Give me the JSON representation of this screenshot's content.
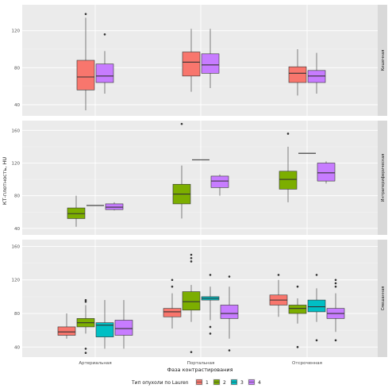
{
  "chart_data": {
    "type": "boxplot",
    "xlabel": "Фаза контрастирования",
    "ylabel": "КТ-плотность, HU",
    "categories": [
      "Артериальная",
      "Портальная",
      "Отсроченная"
    ],
    "legend": {
      "title": "Тип опухоли по Lauren",
      "position": "bottom",
      "items": [
        {
          "label": "1",
          "color": "#f8766d"
        },
        {
          "label": "2",
          "color": "#7cae00"
        },
        {
          "label": "3",
          "color": "#00bfc4"
        },
        {
          "label": "4",
          "color": "#c77cff"
        }
      ]
    },
    "grid": true,
    "panels": [
      {
        "strip": "Кишечная",
        "ylim": [
          28,
          148
        ],
        "yticks": [
          40,
          80,
          120
        ],
        "boxes": [
          {
            "category": "Артериальная",
            "group": "1",
            "min": 34,
            "q1": 56,
            "median": 70,
            "q3": 88,
            "max": 134,
            "outliers": [
              138
            ]
          },
          {
            "category": "Артериальная",
            "group": "4",
            "min": 52,
            "q1": 64,
            "median": 71,
            "q3": 84,
            "max": 98,
            "outliers": [
              116
            ]
          },
          {
            "category": "Портальная",
            "group": "1",
            "min": 54,
            "q1": 71,
            "median": 86,
            "q3": 97,
            "max": 122,
            "outliers": []
          },
          {
            "category": "Портальная",
            "group": "4",
            "min": 58,
            "q1": 74,
            "median": 83,
            "q3": 95,
            "max": 122,
            "outliers": []
          },
          {
            "category": "Отсроченная",
            "group": "1",
            "min": 50,
            "q1": 64,
            "median": 74,
            "q3": 81,
            "max": 100,
            "outliers": []
          },
          {
            "category": "Отсроченная",
            "group": "4",
            "min": 52,
            "q1": 64,
            "median": 71,
            "q3": 77,
            "max": 96,
            "outliers": []
          }
        ]
      },
      {
        "strip": "Интрапериферическая",
        "ylim": [
          32,
          172
        ],
        "yticks": [
          40,
          80,
          120,
          160
        ],
        "boxes": [
          {
            "category": "Артериальная",
            "group": "2",
            "min": 42,
            "q1": 52,
            "median": 58,
            "q3": 65,
            "max": 80,
            "outliers": []
          },
          {
            "category": "Артериальная",
            "group": "3",
            "min": 68,
            "q1": 68,
            "median": 68,
            "q3": 68,
            "max": 68,
            "outliers": []
          },
          {
            "category": "Артериальная",
            "group": "4",
            "min": 62,
            "q1": 63,
            "median": 66,
            "q3": 70,
            "max": 72,
            "outliers": []
          },
          {
            "category": "Портальная",
            "group": "2",
            "min": 52,
            "q1": 70,
            "median": 82,
            "q3": 94,
            "max": 117,
            "outliers": [
              168
            ]
          },
          {
            "category": "Портальная",
            "group": "3",
            "min": 124,
            "q1": 124,
            "median": 124,
            "q3": 124,
            "max": 124,
            "outliers": []
          },
          {
            "category": "Портальная",
            "group": "4",
            "min": 80,
            "q1": 90,
            "median": 98,
            "q3": 104,
            "max": 106,
            "outliers": []
          },
          {
            "category": "Отсроченная",
            "group": "2",
            "min": 72,
            "q1": 88,
            "median": 100,
            "q3": 110,
            "max": 140,
            "outliers": [
              156
            ]
          },
          {
            "category": "Отсроченная",
            "group": "3",
            "min": 132,
            "q1": 132,
            "median": 132,
            "q3": 132,
            "max": 132,
            "outliers": []
          },
          {
            "category": "Отсроченная",
            "group": "4",
            "min": 95,
            "q1": 98,
            "median": 108,
            "q3": 120,
            "max": 122,
            "outliers": []
          }
        ]
      },
      {
        "strip": "Смешанная",
        "ylim": [
          28,
          168
        ],
        "yticks": [
          40,
          80,
          120,
          160
        ],
        "boxes": [
          {
            "category": "Артериальная",
            "group": "1",
            "min": 50,
            "q1": 54,
            "median": 58,
            "q3": 64,
            "max": 80,
            "outliers": []
          },
          {
            "category": "Артериальная",
            "group": "2",
            "min": 56,
            "q1": 64,
            "median": 69,
            "q3": 74,
            "max": 90,
            "outliers": [
              94,
              96,
              38,
              33
            ]
          },
          {
            "category": "Артериальная",
            "group": "3",
            "min": 38,
            "q1": 52,
            "median": 66,
            "q3": 69,
            "max": 96,
            "outliers": []
          },
          {
            "category": "Артериальная",
            "group": "4",
            "min": 38,
            "q1": 54,
            "median": 62,
            "q3": 72,
            "max": 96,
            "outliers": []
          },
          {
            "category": "Портальная",
            "group": "1",
            "min": 62,
            "q1": 76,
            "median": 82,
            "q3": 86,
            "max": 104,
            "outliers": [
              120,
              112
            ]
          },
          {
            "category": "Портальная",
            "group": "2",
            "min": 70,
            "q1": 84,
            "median": 94,
            "q3": 106,
            "max": 114,
            "outliers": [
              150,
              146,
              142,
              34
            ]
          },
          {
            "category": "Портальная",
            "group": "3",
            "min": 72,
            "q1": 96,
            "median": 98,
            "q3": 100,
            "max": 112,
            "outliers": [
              126,
              64,
              56
            ]
          },
          {
            "category": "Портальная",
            "group": "4",
            "min": 50,
            "q1": 74,
            "median": 80,
            "q3": 90,
            "max": 112,
            "outliers": [
              124,
              36
            ]
          },
          {
            "category": "Отсроченная",
            "group": "1",
            "min": 76,
            "q1": 90,
            "median": 96,
            "q3": 102,
            "max": 120,
            "outliers": [
              126
            ]
          },
          {
            "category": "Отсроченная",
            "group": "2",
            "min": 68,
            "q1": 80,
            "median": 86,
            "q3": 90,
            "max": 98,
            "outliers": [
              112,
              40
            ]
          },
          {
            "category": "Отсроченная",
            "group": "3",
            "min": 70,
            "q1": 82,
            "median": 88,
            "q3": 96,
            "max": 110,
            "outliers": [
              126,
              48
            ]
          },
          {
            "category": "Отсроченная",
            "group": "4",
            "min": 58,
            "q1": 74,
            "median": 80,
            "q3": 86,
            "max": 104,
            "outliers": [
              120,
              116,
              112,
              48
            ]
          }
        ]
      }
    ]
  }
}
